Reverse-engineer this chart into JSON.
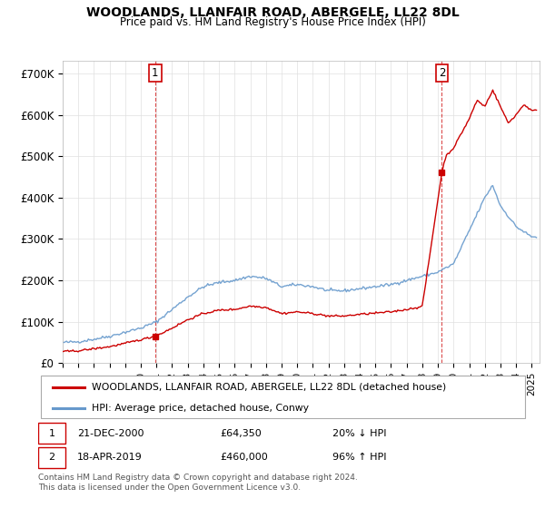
{
  "title": "WOODLANDS, LLANFAIR ROAD, ABERGELE, LL22 8DL",
  "subtitle": "Price paid vs. HM Land Registry's House Price Index (HPI)",
  "property_label": "WOODLANDS, LLANFAIR ROAD, ABERGELE, LL22 8DL (detached house)",
  "hpi_label": "HPI: Average price, detached house, Conwy",
  "sale1_date": "21-DEC-2000",
  "sale1_price": 64350,
  "sale1_hpi": "20% ↓ HPI",
  "sale2_date": "18-APR-2019",
  "sale2_price": 460000,
  "sale2_hpi": "96% ↑ HPI",
  "footer": "Contains HM Land Registry data © Crown copyright and database right 2024.\nThis data is licensed under the Open Government Licence v3.0.",
  "property_color": "#cc0000",
  "hpi_color": "#6699cc",
  "marker_box_color": "#cc0000",
  "ylim": [
    0,
    730000
  ],
  "yticks": [
    0,
    100000,
    200000,
    300000,
    400000,
    500000,
    600000,
    700000
  ],
  "ytick_labels": [
    "£0",
    "£100K",
    "£200K",
    "£300K",
    "£400K",
    "£500K",
    "£600K",
    "£700K"
  ],
  "start_year": 1995,
  "end_year": 2025,
  "hpi_keypoints": [
    [
      1995.0,
      50000
    ],
    [
      1996.0,
      52000
    ],
    [
      1997.0,
      58000
    ],
    [
      1998.0,
      65000
    ],
    [
      1999.0,
      75000
    ],
    [
      2000.0,
      85000
    ],
    [
      2001.0,
      100000
    ],
    [
      2002.0,
      130000
    ],
    [
      2003.0,
      160000
    ],
    [
      2004.0,
      185000
    ],
    [
      2005.0,
      195000
    ],
    [
      2006.0,
      200000
    ],
    [
      2007.0,
      210000
    ],
    [
      2008.0,
      205000
    ],
    [
      2009.0,
      185000
    ],
    [
      2010.0,
      190000
    ],
    [
      2011.0,
      185000
    ],
    [
      2012.0,
      175000
    ],
    [
      2013.0,
      175000
    ],
    [
      2014.0,
      180000
    ],
    [
      2015.0,
      185000
    ],
    [
      2016.0,
      190000
    ],
    [
      2017.0,
      200000
    ],
    [
      2018.0,
      210000
    ],
    [
      2019.0,
      220000
    ],
    [
      2020.0,
      240000
    ],
    [
      2021.0,
      320000
    ],
    [
      2022.0,
      400000
    ],
    [
      2022.5,
      430000
    ],
    [
      2023.0,
      380000
    ],
    [
      2024.0,
      330000
    ],
    [
      2025.0,
      305000
    ]
  ],
  "prop_keypoints_pre": [
    [
      1995.0,
      28000
    ],
    [
      1996.0,
      30000
    ],
    [
      1997.0,
      35000
    ],
    [
      1998.0,
      40000
    ],
    [
      1999.0,
      48000
    ],
    [
      2000.83,
      64350
    ]
  ],
  "prop_keypoints_mid": [
    [
      2000.83,
      64350
    ],
    [
      2001.0,
      66000
    ],
    [
      2002.0,
      85000
    ],
    [
      2003.0,
      105000
    ],
    [
      2004.0,
      120000
    ],
    [
      2005.0,
      128000
    ],
    [
      2006.0,
      130000
    ],
    [
      2007.0,
      138000
    ],
    [
      2008.0,
      135000
    ],
    [
      2009.0,
      120000
    ],
    [
      2010.0,
      124000
    ],
    [
      2011.0,
      120000
    ],
    [
      2012.0,
      114000
    ],
    [
      2013.0,
      114000
    ],
    [
      2014.0,
      118000
    ],
    [
      2015.0,
      121000
    ],
    [
      2016.0,
      124000
    ],
    [
      2017.0,
      130000
    ],
    [
      2018.0,
      137000
    ],
    [
      2019.25,
      460000
    ]
  ],
  "prop_keypoints_post": [
    [
      2019.25,
      460000
    ],
    [
      2019.5,
      500000
    ],
    [
      2020.0,
      520000
    ],
    [
      2021.0,
      590000
    ],
    [
      2021.5,
      635000
    ],
    [
      2022.0,
      620000
    ],
    [
      2022.5,
      660000
    ],
    [
      2023.0,
      620000
    ],
    [
      2023.5,
      580000
    ],
    [
      2024.0,
      600000
    ],
    [
      2024.5,
      625000
    ],
    [
      2025.0,
      610000
    ]
  ]
}
